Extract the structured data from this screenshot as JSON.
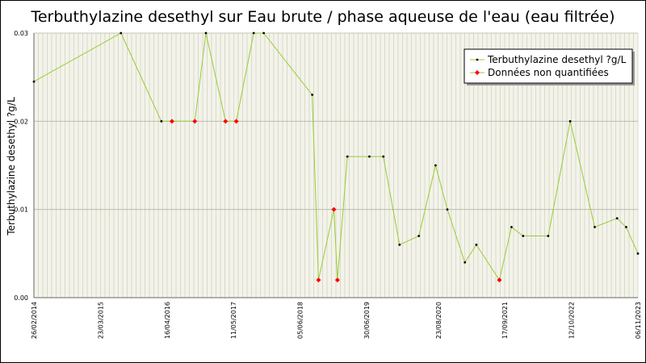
{
  "chart_data": {
    "type": "line",
    "title": "Terbuthylazine desethyl sur Eau brute / phase aqueuse de l'eau (eau filtrée)",
    "ylabel": "Terbuthylazine desethyl ?g/L",
    "xlabel": "",
    "ylim": [
      0,
      0.03
    ],
    "y_ticks": [
      "0.00",
      "0.01",
      "0.02",
      "0.03"
    ],
    "x_range": [
      "2014-02-26",
      "2023-11-06"
    ],
    "x_ticks": [
      {
        "date": "2014-02-26",
        "label": "26/02/2014"
      },
      {
        "date": "2015-03-23",
        "label": "23/03/2015"
      },
      {
        "date": "2016-04-16",
        "label": "16/04/2016"
      },
      {
        "date": "2017-05-11",
        "label": "11/05/2017"
      },
      {
        "date": "2018-06-05",
        "label": "05/06/2018"
      },
      {
        "date": "2019-06-30",
        "label": "30/06/2019"
      },
      {
        "date": "2020-08-23",
        "label": "23/08/2020"
      },
      {
        "date": "2021-09-17",
        "label": "17/09/2021"
      },
      {
        "date": "2022-10-12",
        "label": "12/10/2022"
      },
      {
        "date": "2023-11-06",
        "label": "06/11/2023"
      }
    ],
    "grid": true,
    "legend_position": "top-right",
    "colors": {
      "line": "#99cc33",
      "quantified_marker": "#000000",
      "unquantified_marker": "#ff0000",
      "plot_background": "#f3f3ea",
      "grid": "#c8c8b8"
    },
    "series": [
      {
        "name": "Terbuthylazine desethyl ?g/L",
        "points": [
          {
            "x": "2014-02-26",
            "y": 0.0245,
            "q": true
          },
          {
            "x": "2015-07-21",
            "y": 0.03,
            "q": true
          },
          {
            "x": "2016-03-14",
            "y": 0.02,
            "q": true
          },
          {
            "x": "2016-05-15",
            "y": 0.02,
            "q": false
          },
          {
            "x": "2016-09-26",
            "y": 0.02,
            "q": false
          },
          {
            "x": "2016-11-30",
            "y": 0.03,
            "q": true
          },
          {
            "x": "2017-03-25",
            "y": 0.02,
            "q": false
          },
          {
            "x": "2017-05-27",
            "y": 0.02,
            "q": false
          },
          {
            "x": "2017-09-06",
            "y": 0.03,
            "q": true
          },
          {
            "x": "2017-11-04",
            "y": 0.03,
            "q": true
          },
          {
            "x": "2018-08-15",
            "y": 0.023,
            "q": true
          },
          {
            "x": "2018-09-21",
            "y": 0.002,
            "q": false
          },
          {
            "x": "2018-12-20",
            "y": 0.01,
            "q": false
          },
          {
            "x": "2019-01-10",
            "y": 0.002,
            "q": false
          },
          {
            "x": "2019-03-09",
            "y": 0.016,
            "q": true
          },
          {
            "x": "2019-07-16",
            "y": 0.016,
            "q": true
          },
          {
            "x": "2019-10-06",
            "y": 0.016,
            "q": true
          },
          {
            "x": "2020-01-09",
            "y": 0.006,
            "q": true
          },
          {
            "x": "2020-05-01",
            "y": 0.007,
            "q": true
          },
          {
            "x": "2020-08-07",
            "y": 0.015,
            "q": true
          },
          {
            "x": "2020-10-15",
            "y": 0.01,
            "q": true
          },
          {
            "x": "2021-01-26",
            "y": 0.004,
            "q": true
          },
          {
            "x": "2021-04-03",
            "y": 0.006,
            "q": true
          },
          {
            "x": "2021-08-16",
            "y": 0.002,
            "q": false
          },
          {
            "x": "2021-10-26",
            "y": 0.008,
            "q": true
          },
          {
            "x": "2022-01-02",
            "y": 0.007,
            "q": true
          },
          {
            "x": "2022-05-29",
            "y": 0.007,
            "q": true
          },
          {
            "x": "2022-10-05",
            "y": 0.02,
            "q": true
          },
          {
            "x": "2023-02-26",
            "y": 0.008,
            "q": true
          },
          {
            "x": "2023-07-07",
            "y": 0.009,
            "q": true
          },
          {
            "x": "2023-08-29",
            "y": 0.008,
            "q": true
          },
          {
            "x": "2023-11-06",
            "y": 0.005,
            "q": true
          }
        ]
      }
    ],
    "legend": {
      "quantified_label": "Terbuthylazine desethyl ?g/L",
      "unquantified_label": "Données non quantifiées"
    }
  }
}
